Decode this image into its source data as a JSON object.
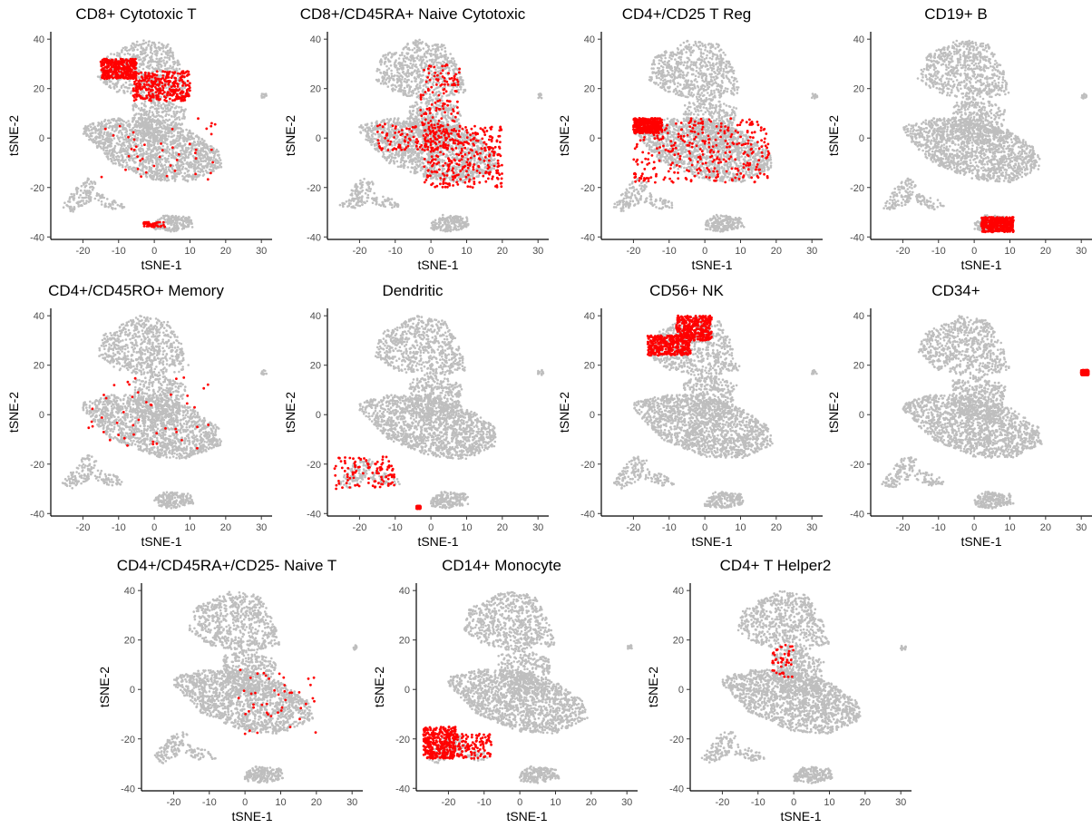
{
  "chart_data": [
    {
      "type": "scatter",
      "title": "CD8+ Cytotoxic T",
      "xlabel": "tSNE-1",
      "ylabel": "tSNE-2",
      "xlim": [
        -29,
        33
      ],
      "ylim": [
        -41,
        43
      ],
      "xticks": [
        -20,
        -10,
        0,
        10,
        20,
        30
      ],
      "yticks": [
        -40,
        -20,
        0,
        20,
        40
      ],
      "grid": false,
      "background_color": "#bebebe",
      "highlight_color": "#ff0000",
      "highlight_regions": [
        {
          "x": [
            -15,
            -5
          ],
          "y": [
            24,
            32
          ],
          "density": "high"
        },
        {
          "x": [
            -6,
            10
          ],
          "y": [
            15,
            27
          ],
          "density": "high"
        },
        {
          "x": [
            -15,
            18
          ],
          "y": [
            -18,
            8
          ],
          "density": "sparse"
        },
        {
          "x": [
            -3,
            3
          ],
          "y": [
            -36,
            -34
          ],
          "density": "sparse"
        }
      ]
    },
    {
      "type": "scatter",
      "title": "CD8+/CD45RA+ Naive Cytotoxic",
      "xlabel": "tSNE-1",
      "ylabel": "tSNE-2",
      "xlim": [
        -29,
        33
      ],
      "ylim": [
        -41,
        43
      ],
      "xticks": [
        -20,
        -10,
        0,
        10,
        20,
        30
      ],
      "yticks": [
        -40,
        -20,
        0,
        20,
        40
      ],
      "grid": false,
      "background_color": "#bebebe",
      "highlight_color": "#ff0000",
      "highlight_regions": [
        {
          "x": [
            -2,
            20
          ],
          "y": [
            -20,
            5
          ],
          "density": "high"
        },
        {
          "x": [
            -15,
            5
          ],
          "y": [
            -5,
            6
          ],
          "density": "medium"
        },
        {
          "x": [
            -3,
            8
          ],
          "y": [
            5,
            30
          ],
          "density": "medium"
        }
      ]
    },
    {
      "type": "scatter",
      "title": "CD4+/CD25 T Reg",
      "xlabel": "tSNE-1",
      "ylabel": "tSNE-2",
      "xlim": [
        -29,
        33
      ],
      "ylim": [
        -41,
        43
      ],
      "xticks": [
        -20,
        -10,
        0,
        10,
        20,
        30
      ],
      "yticks": [
        -40,
        -20,
        0,
        20,
        40
      ],
      "grid": false,
      "background_color": "#bebebe",
      "highlight_color": "#ff0000",
      "highlight_regions": [
        {
          "x": [
            -20,
            18
          ],
          "y": [
            -18,
            8
          ],
          "density": "high"
        },
        {
          "x": [
            -20,
            -12
          ],
          "y": [
            2,
            8
          ],
          "density": "high"
        }
      ]
    },
    {
      "type": "scatter",
      "title": "CD19+ B",
      "xlabel": "tSNE-1",
      "ylabel": "tSNE-2",
      "xlim": [
        -29,
        33
      ],
      "ylim": [
        -41,
        43
      ],
      "xticks": [
        -20,
        -10,
        0,
        10,
        20,
        30
      ],
      "yticks": [
        -40,
        -20,
        0,
        20,
        40
      ],
      "grid": false,
      "background_color": "#bebebe",
      "highlight_color": "#ff0000",
      "highlight_regions": [
        {
          "x": [
            2,
            11
          ],
          "y": [
            -38,
            -32
          ],
          "density": "high"
        }
      ]
    },
    {
      "type": "scatter",
      "title": "CD4+/CD45RO+ Memory",
      "xlabel": "tSNE-1",
      "ylabel": "tSNE-2",
      "xlim": [
        -29,
        33
      ],
      "ylim": [
        -41,
        43
      ],
      "xticks": [
        -20,
        -10,
        0,
        10,
        20,
        30
      ],
      "yticks": [
        -40,
        -20,
        0,
        20,
        40
      ],
      "grid": false,
      "background_color": "#bebebe",
      "highlight_color": "#ff0000",
      "highlight_regions": [
        {
          "x": [
            -20,
            18
          ],
          "y": [
            -15,
            15
          ],
          "density": "sparse"
        }
      ]
    },
    {
      "type": "scatter",
      "title": "Dendritic",
      "xlabel": "tSNE-1",
      "ylabel": "tSNE-2",
      "xlim": [
        -29,
        33
      ],
      "ylim": [
        -41,
        43
      ],
      "xticks": [
        -20,
        -10,
        0,
        10,
        20,
        30
      ],
      "yticks": [
        -40,
        -20,
        0,
        20,
        40
      ],
      "grid": false,
      "background_color": "#bebebe",
      "highlight_color": "#ff0000",
      "highlight_regions": [
        {
          "x": [
            -27,
            -10
          ],
          "y": [
            -30,
            -17
          ],
          "density": "medium"
        },
        {
          "x": [
            -4,
            -3
          ],
          "y": [
            -38,
            -37
          ],
          "density": "high"
        }
      ]
    },
    {
      "type": "scatter",
      "title": "CD56+ NK",
      "xlabel": "tSNE-1",
      "ylabel": "tSNE-2",
      "xlim": [
        -29,
        33
      ],
      "ylim": [
        -41,
        43
      ],
      "xticks": [
        -20,
        -10,
        0,
        10,
        20,
        30
      ],
      "yticks": [
        -40,
        -20,
        0,
        20,
        40
      ],
      "grid": false,
      "background_color": "#bebebe",
      "highlight_color": "#ff0000",
      "highlight_regions": [
        {
          "x": [
            -8,
            2
          ],
          "y": [
            30,
            40
          ],
          "density": "high"
        },
        {
          "x": [
            -16,
            -4
          ],
          "y": [
            24,
            32
          ],
          "density": "high"
        }
      ]
    },
    {
      "type": "scatter",
      "title": "CD34+",
      "xlabel": "tSNE-1",
      "ylabel": "tSNE-2",
      "xlim": [
        -29,
        33
      ],
      "ylim": [
        -41,
        43
      ],
      "xticks": [
        -20,
        -10,
        0,
        10,
        20,
        30
      ],
      "yticks": [
        -40,
        -20,
        0,
        20,
        40
      ],
      "grid": false,
      "background_color": "#bebebe",
      "highlight_color": "#ff0000",
      "highlight_regions": [
        {
          "x": [
            30,
            32
          ],
          "y": [
            16,
            18
          ],
          "density": "high"
        }
      ]
    },
    {
      "type": "scatter",
      "title": "CD4+/CD45RA+/CD25- Naive T",
      "xlabel": "tSNE-1",
      "ylabel": "tSNE-2",
      "xlim": [
        -29,
        33
      ],
      "ylim": [
        -41,
        43
      ],
      "xticks": [
        -20,
        -10,
        0,
        10,
        20,
        30
      ],
      "yticks": [
        -40,
        -20,
        0,
        20,
        40
      ],
      "grid": false,
      "background_color": "#bebebe",
      "highlight_color": "#ff0000",
      "highlight_regions": [
        {
          "x": [
            -2,
            20
          ],
          "y": [
            -18,
            8
          ],
          "density": "sparse"
        }
      ]
    },
    {
      "type": "scatter",
      "title": "CD14+ Monocyte",
      "xlabel": "tSNE-1",
      "ylabel": "tSNE-2",
      "xlim": [
        -29,
        33
      ],
      "ylim": [
        -41,
        43
      ],
      "xticks": [
        -20,
        -10,
        0,
        10,
        20,
        30
      ],
      "yticks": [
        -40,
        -20,
        0,
        20,
        40
      ],
      "grid": false,
      "background_color": "#bebebe",
      "highlight_color": "#ff0000",
      "highlight_regions": [
        {
          "x": [
            -27,
            -18
          ],
          "y": [
            -28,
            -15
          ],
          "density": "high"
        },
        {
          "x": [
            -18,
            -8
          ],
          "y": [
            -28,
            -18
          ],
          "density": "medium"
        }
      ]
    },
    {
      "type": "scatter",
      "title": "CD4+ T Helper2",
      "xlabel": "tSNE-1",
      "ylabel": "tSNE-2",
      "xlim": [
        -29,
        33
      ],
      "ylim": [
        -41,
        43
      ],
      "xticks": [
        -20,
        -10,
        0,
        10,
        20,
        30
      ],
      "yticks": [
        -40,
        -20,
        0,
        20,
        40
      ],
      "grid": false,
      "background_color": "#bebebe",
      "highlight_color": "#ff0000",
      "highlight_regions": [
        {
          "x": [
            -6,
            0
          ],
          "y": [
            5,
            18
          ],
          "density": "sparse"
        }
      ]
    }
  ]
}
